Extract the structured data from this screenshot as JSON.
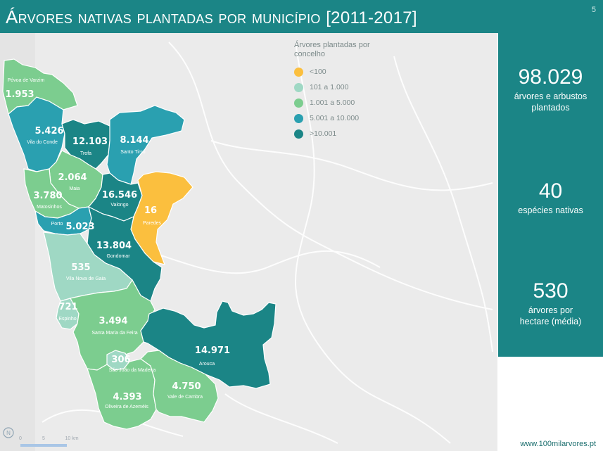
{
  "header": {
    "title_main": "Árvores nativas plantadas por município",
    "title_years": "[2011-2017]",
    "page_number": "5"
  },
  "legend": {
    "title": "Árvores plantadas por concelho",
    "items": [
      {
        "label": "<100",
        "color": "#fbbf3e"
      },
      {
        "label": "101 a 1.000",
        "color": "#9fd8c4"
      },
      {
        "label": "1.001 a 5.000",
        "color": "#7ccd8f"
      },
      {
        "label": "5.001 a 10.000",
        "color": "#2aa0b0"
      },
      {
        "label": ">10.001",
        "color": "#1b8586"
      }
    ]
  },
  "municipalities": [
    {
      "name": "Póvoa de Varzim",
      "value": "1.953"
    },
    {
      "name": "Vila do Conde",
      "value": "5.426"
    },
    {
      "name": "Trofa",
      "value": "12.103"
    },
    {
      "name": "Santo Tirso",
      "value": "8.144"
    },
    {
      "name": "Maia",
      "value": "2.064"
    },
    {
      "name": "Matosinhos",
      "value": "3.780"
    },
    {
      "name": "Valongo",
      "value": "16.546"
    },
    {
      "name": "Paredes",
      "value": "16"
    },
    {
      "name": "Porto",
      "value": "5.023"
    },
    {
      "name": "Gondomar",
      "value": "13.804"
    },
    {
      "name": "Vila Nova de Gaia",
      "value": "535"
    },
    {
      "name": "Espinho",
      "value": "721"
    },
    {
      "name": "Santa Maria da Feira",
      "value": "3.494"
    },
    {
      "name": "Arouca",
      "value": "14.971"
    },
    {
      "name": "São João da Madeira",
      "value": "306"
    },
    {
      "name": "Oliveira de Azeméis",
      "value": "4.393"
    },
    {
      "name": "Vale de Cambra",
      "value": "4.750"
    }
  ],
  "scale": {
    "ticks": [
      "0",
      "5",
      "10 km"
    ]
  },
  "compass": "N",
  "stats": [
    {
      "value": "98.029",
      "label": "árvores e arbustos plantados"
    },
    {
      "value": "40",
      "label": "espécies nativas"
    },
    {
      "value": "530",
      "label": "árvores por hectare (média)"
    }
  ],
  "footer": {
    "url": "www.100milarvores.pt"
  }
}
